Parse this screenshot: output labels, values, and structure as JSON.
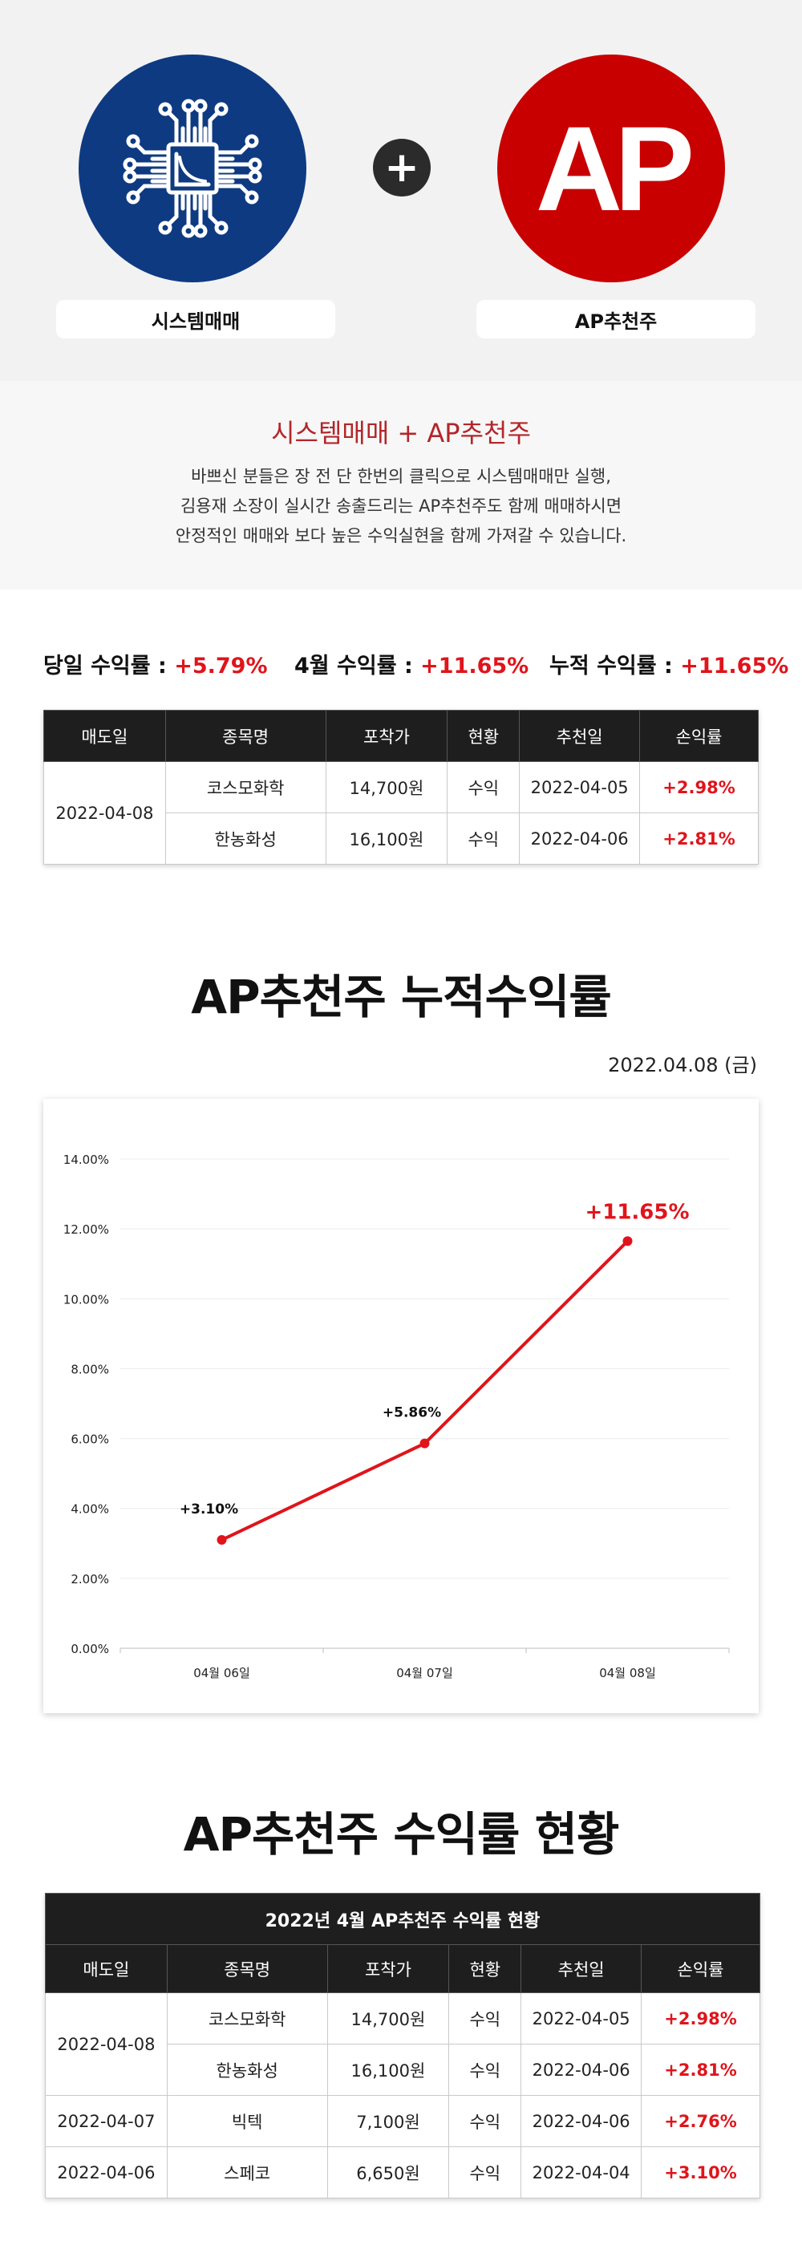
{
  "hero": {
    "left_label": "시스템매매",
    "right_label": "AP추천주",
    "right_logo_text": "AP",
    "plus_symbol": "+",
    "colors": {
      "left_circle": "#0e3a82",
      "right_circle": "#c80000"
    },
    "icons": {
      "left": "circuit-chip-icon",
      "plus": "plus-icon"
    }
  },
  "intro": {
    "title": "시스템매매 + AP추천주",
    "lines": [
      "바쁘신 분들은 장 전 단 한번의 클릭으로 시스템매매만 실행,",
      "김용재 소장이 실시간 송출드리는 AP추천주도 함께 매매하시면",
      "안정적인 매매와 보다 높은 수익실현을 함께 가져갈 수 있습니다."
    ]
  },
  "summary": {
    "daily_label": "당일 수익률 : ",
    "daily_value": "+5.79%",
    "month_label": "4월 수익률 : ",
    "month_value": "+11.65%",
    "cumulative_label": "누적 수익률 : ",
    "cumulative_value": "+11.65%"
  },
  "table1": {
    "headers": [
      "매도일",
      "종목명",
      "포착가",
      "현황",
      "추천일",
      "손익률"
    ],
    "date": "2022-04-08",
    "rows": [
      {
        "name": "코스모화학",
        "price": "14,700원",
        "status": "수익",
        "rec_date": "2022-04-05",
        "profit": "+2.98%"
      },
      {
        "name": "한농화성",
        "price": "16,100원",
        "status": "수익",
        "rec_date": "2022-04-06",
        "profit": "+2.81%"
      }
    ]
  },
  "chart_section": {
    "title": "AP추천주 누적수익률",
    "date": "2022.04.08 (금)"
  },
  "chart_data": {
    "type": "line",
    "title": "",
    "xlabel": "",
    "ylabel": "",
    "categories": [
      "04월 06일",
      "04월 07일",
      "04월 08일"
    ],
    "values": [
      3.1,
      5.86,
      11.65
    ],
    "value_labels": [
      "+3.10%",
      "+5.86%",
      "+11.65%"
    ],
    "yticks": [
      "0.00%",
      "2.00%",
      "4.00%",
      "6.00%",
      "8.00%",
      "10.00%",
      "12.00%",
      "14.00%"
    ],
    "ylim": [
      0,
      14
    ],
    "grid": true,
    "line_color": "#e0141b"
  },
  "status_section": {
    "title": "AP추천주 수익률 현황"
  },
  "table2": {
    "caption": "2022년 4월 AP추천주 수익률 현황",
    "headers": [
      "매도일",
      "종목명",
      "포착가",
      "현황",
      "추천일",
      "손익률"
    ],
    "groups": [
      {
        "date": "2022-04-08",
        "rows": [
          {
            "name": "코스모화학",
            "price": "14,700원",
            "status": "수익",
            "rec_date": "2022-04-05",
            "profit": "+2.98%"
          },
          {
            "name": "한농화성",
            "price": "16,100원",
            "status": "수익",
            "rec_date": "2022-04-06",
            "profit": "+2.81%"
          }
        ]
      },
      {
        "date": "2022-04-07",
        "rows": [
          {
            "name": "빅텍",
            "price": "7,100원",
            "status": "수익",
            "rec_date": "2022-04-06",
            "profit": "+2.76%"
          }
        ]
      },
      {
        "date": "2022-04-06",
        "rows": [
          {
            "name": "스페코",
            "price": "6,650원",
            "status": "수익",
            "rec_date": "2022-04-04",
            "profit": "+3.10%"
          }
        ]
      }
    ]
  }
}
